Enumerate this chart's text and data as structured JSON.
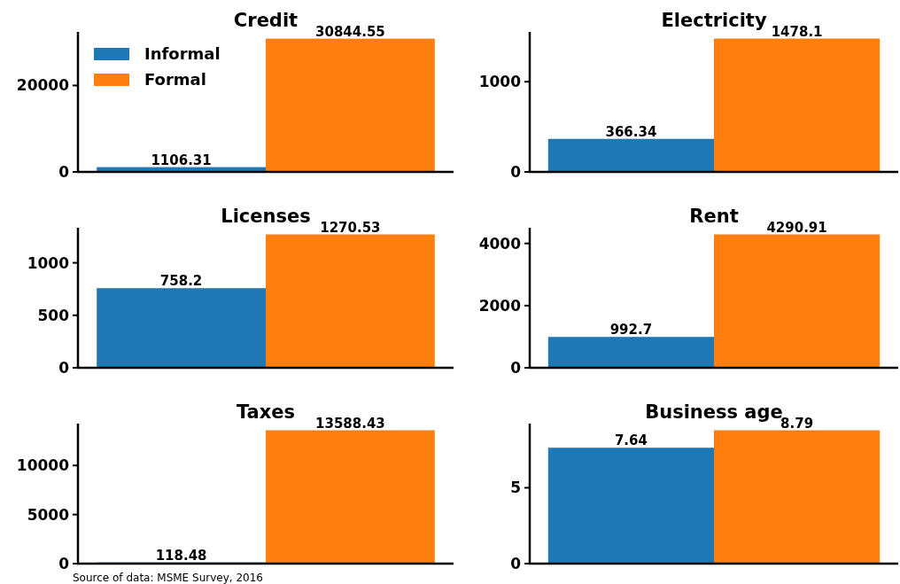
{
  "chart_data": [
    {
      "type": "bar",
      "title": "Credit",
      "categories": [
        null
      ],
      "legend": "top left",
      "data_labels": true,
      "ylim": [
        0,
        32400
      ],
      "yticks": [
        0,
        20000
      ],
      "series": [
        {
          "name": "Informal",
          "color": "#1f77b4",
          "values": [
            1106.31
          ]
        },
        {
          "name": "Formal",
          "color": "#ff7f0e",
          "values": [
            30844.55
          ]
        }
      ]
    },
    {
      "type": "bar",
      "title": "Electricity",
      "categories": [
        null
      ],
      "data_labels": true,
      "ylim": [
        0,
        1552
      ],
      "yticks": [
        0,
        1000
      ],
      "series": [
        {
          "color": "#1f77b4",
          "values": [
            366.34
          ]
        },
        {
          "color": "#ff7f0e",
          "values": [
            1478.1
          ]
        }
      ]
    },
    {
      "type": "bar",
      "title": "Licenses",
      "categories": [
        null
      ],
      "data_labels": true,
      "ylim": [
        0,
        1334
      ],
      "yticks": [
        0,
        500,
        1000
      ],
      "series": [
        {
          "color": "#1f77b4",
          "values": [
            758.2
          ]
        },
        {
          "color": "#ff7f0e",
          "values": [
            1270.53
          ]
        }
      ]
    },
    {
      "type": "bar",
      "title": "Rent",
      "categories": [
        null
      ],
      "data_labels": true,
      "ylim": [
        0,
        4505
      ],
      "yticks": [
        0,
        2000,
        4000
      ],
      "series": [
        {
          "color": "#1f77b4",
          "values": [
            992.7
          ]
        },
        {
          "color": "#ff7f0e",
          "values": [
            4290.91
          ]
        }
      ]
    },
    {
      "type": "bar",
      "title": "Taxes",
      "categories": [
        null
      ],
      "data_labels": true,
      "ylim": [
        0,
        14268
      ],
      "yticks": [
        0,
        5000,
        10000
      ],
      "series": [
        {
          "color": "#1f77b4",
          "values": [
            118.48
          ]
        },
        {
          "color": "#ff7f0e",
          "values": [
            13588.43
          ]
        }
      ]
    },
    {
      "type": "bar",
      "title": "Business age",
      "categories": [
        null
      ],
      "data_labels": true,
      "ylim": [
        0,
        9.23
      ],
      "yticks": [
        0,
        5
      ],
      "annotations": [
        "Source of data: MSME Survey, 2016"
      ],
      "series": [
        {
          "color": "#1f77b4",
          "values": [
            7.64
          ]
        },
        {
          "color": "#ff7f0e",
          "values": [
            8.79
          ]
        }
      ]
    }
  ]
}
